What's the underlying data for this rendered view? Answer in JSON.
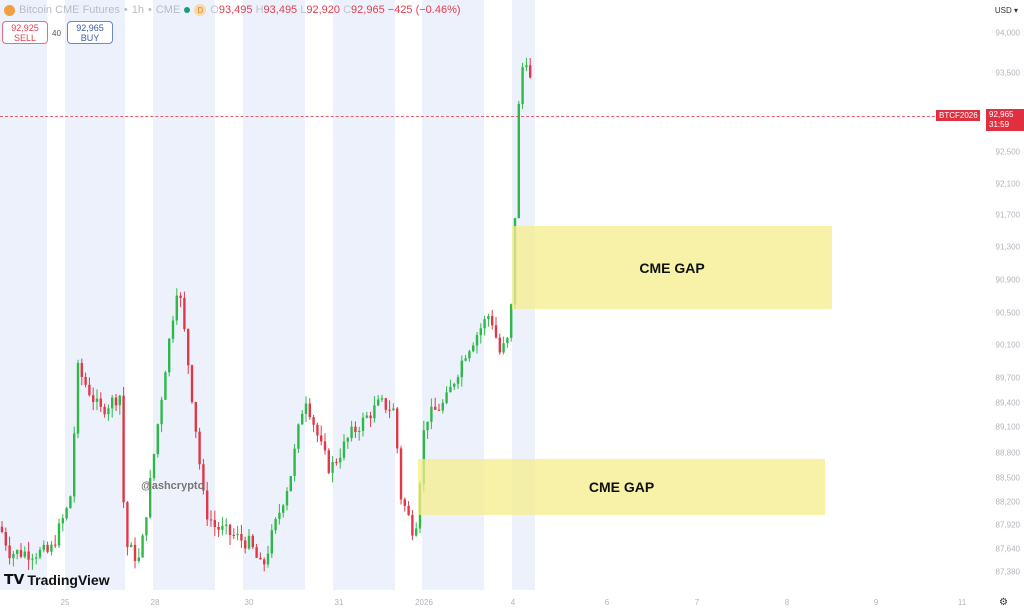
{
  "header": {
    "symbol_name": "Bitcoin CME Futures",
    "interval": "1h",
    "exchange": "CME",
    "badge": "D",
    "open_label": "O",
    "open": "93,495",
    "high_label": "H",
    "high": "93,495",
    "low_label": "L",
    "low": "92,920",
    "close_label": "C",
    "close": "92,965",
    "change": "−425 (−0.46%)"
  },
  "trade": {
    "sell_price": "92,925",
    "sell_label": "SELL",
    "spread": "40",
    "buy_price": "92,965",
    "buy_label": "BUY"
  },
  "price_axis": {
    "currency": "USD",
    "ticks": [
      "94,000",
      "93,500",
      "92,500",
      "92,100",
      "91,700",
      "91,300",
      "90,900",
      "90,500",
      "90,100",
      "89,700",
      "89,400",
      "89,100",
      "88,800",
      "88,500",
      "88,200",
      "87,920",
      "87,640",
      "87,380"
    ]
  },
  "time_axis": {
    "ticks": [
      "25",
      "28",
      "30",
      "31",
      "2026",
      "4",
      "6",
      "7",
      "8",
      "9",
      "11"
    ]
  },
  "current_price": {
    "symbol": "BTCF2026",
    "price": "92,965",
    "countdown": "31:59"
  },
  "annotations": [
    {
      "label": "CME GAP"
    },
    {
      "label": "CME GAP"
    }
  ],
  "watermark": "@ashcrypto",
  "logo": "TradingView",
  "colors": {
    "up": "#26a69a",
    "up_candle": "#2eb84a",
    "down": "#e03848",
    "gap": "#f6ee8c",
    "session_shade": "#edf1fc"
  },
  "price_path": [
    87900,
    87600,
    87600,
    88200,
    89800,
    89300,
    89500,
    87700,
    87500,
    89800,
    90900,
    89700,
    88100,
    87900,
    87700,
    87400,
    88500,
    89500,
    88900,
    88600,
    89000,
    89400,
    89300,
    88300,
    87800,
    89200,
    89400,
    90000,
    90500,
    90000,
    90200,
    91700,
    93500,
    93700,
    92965
  ]
}
